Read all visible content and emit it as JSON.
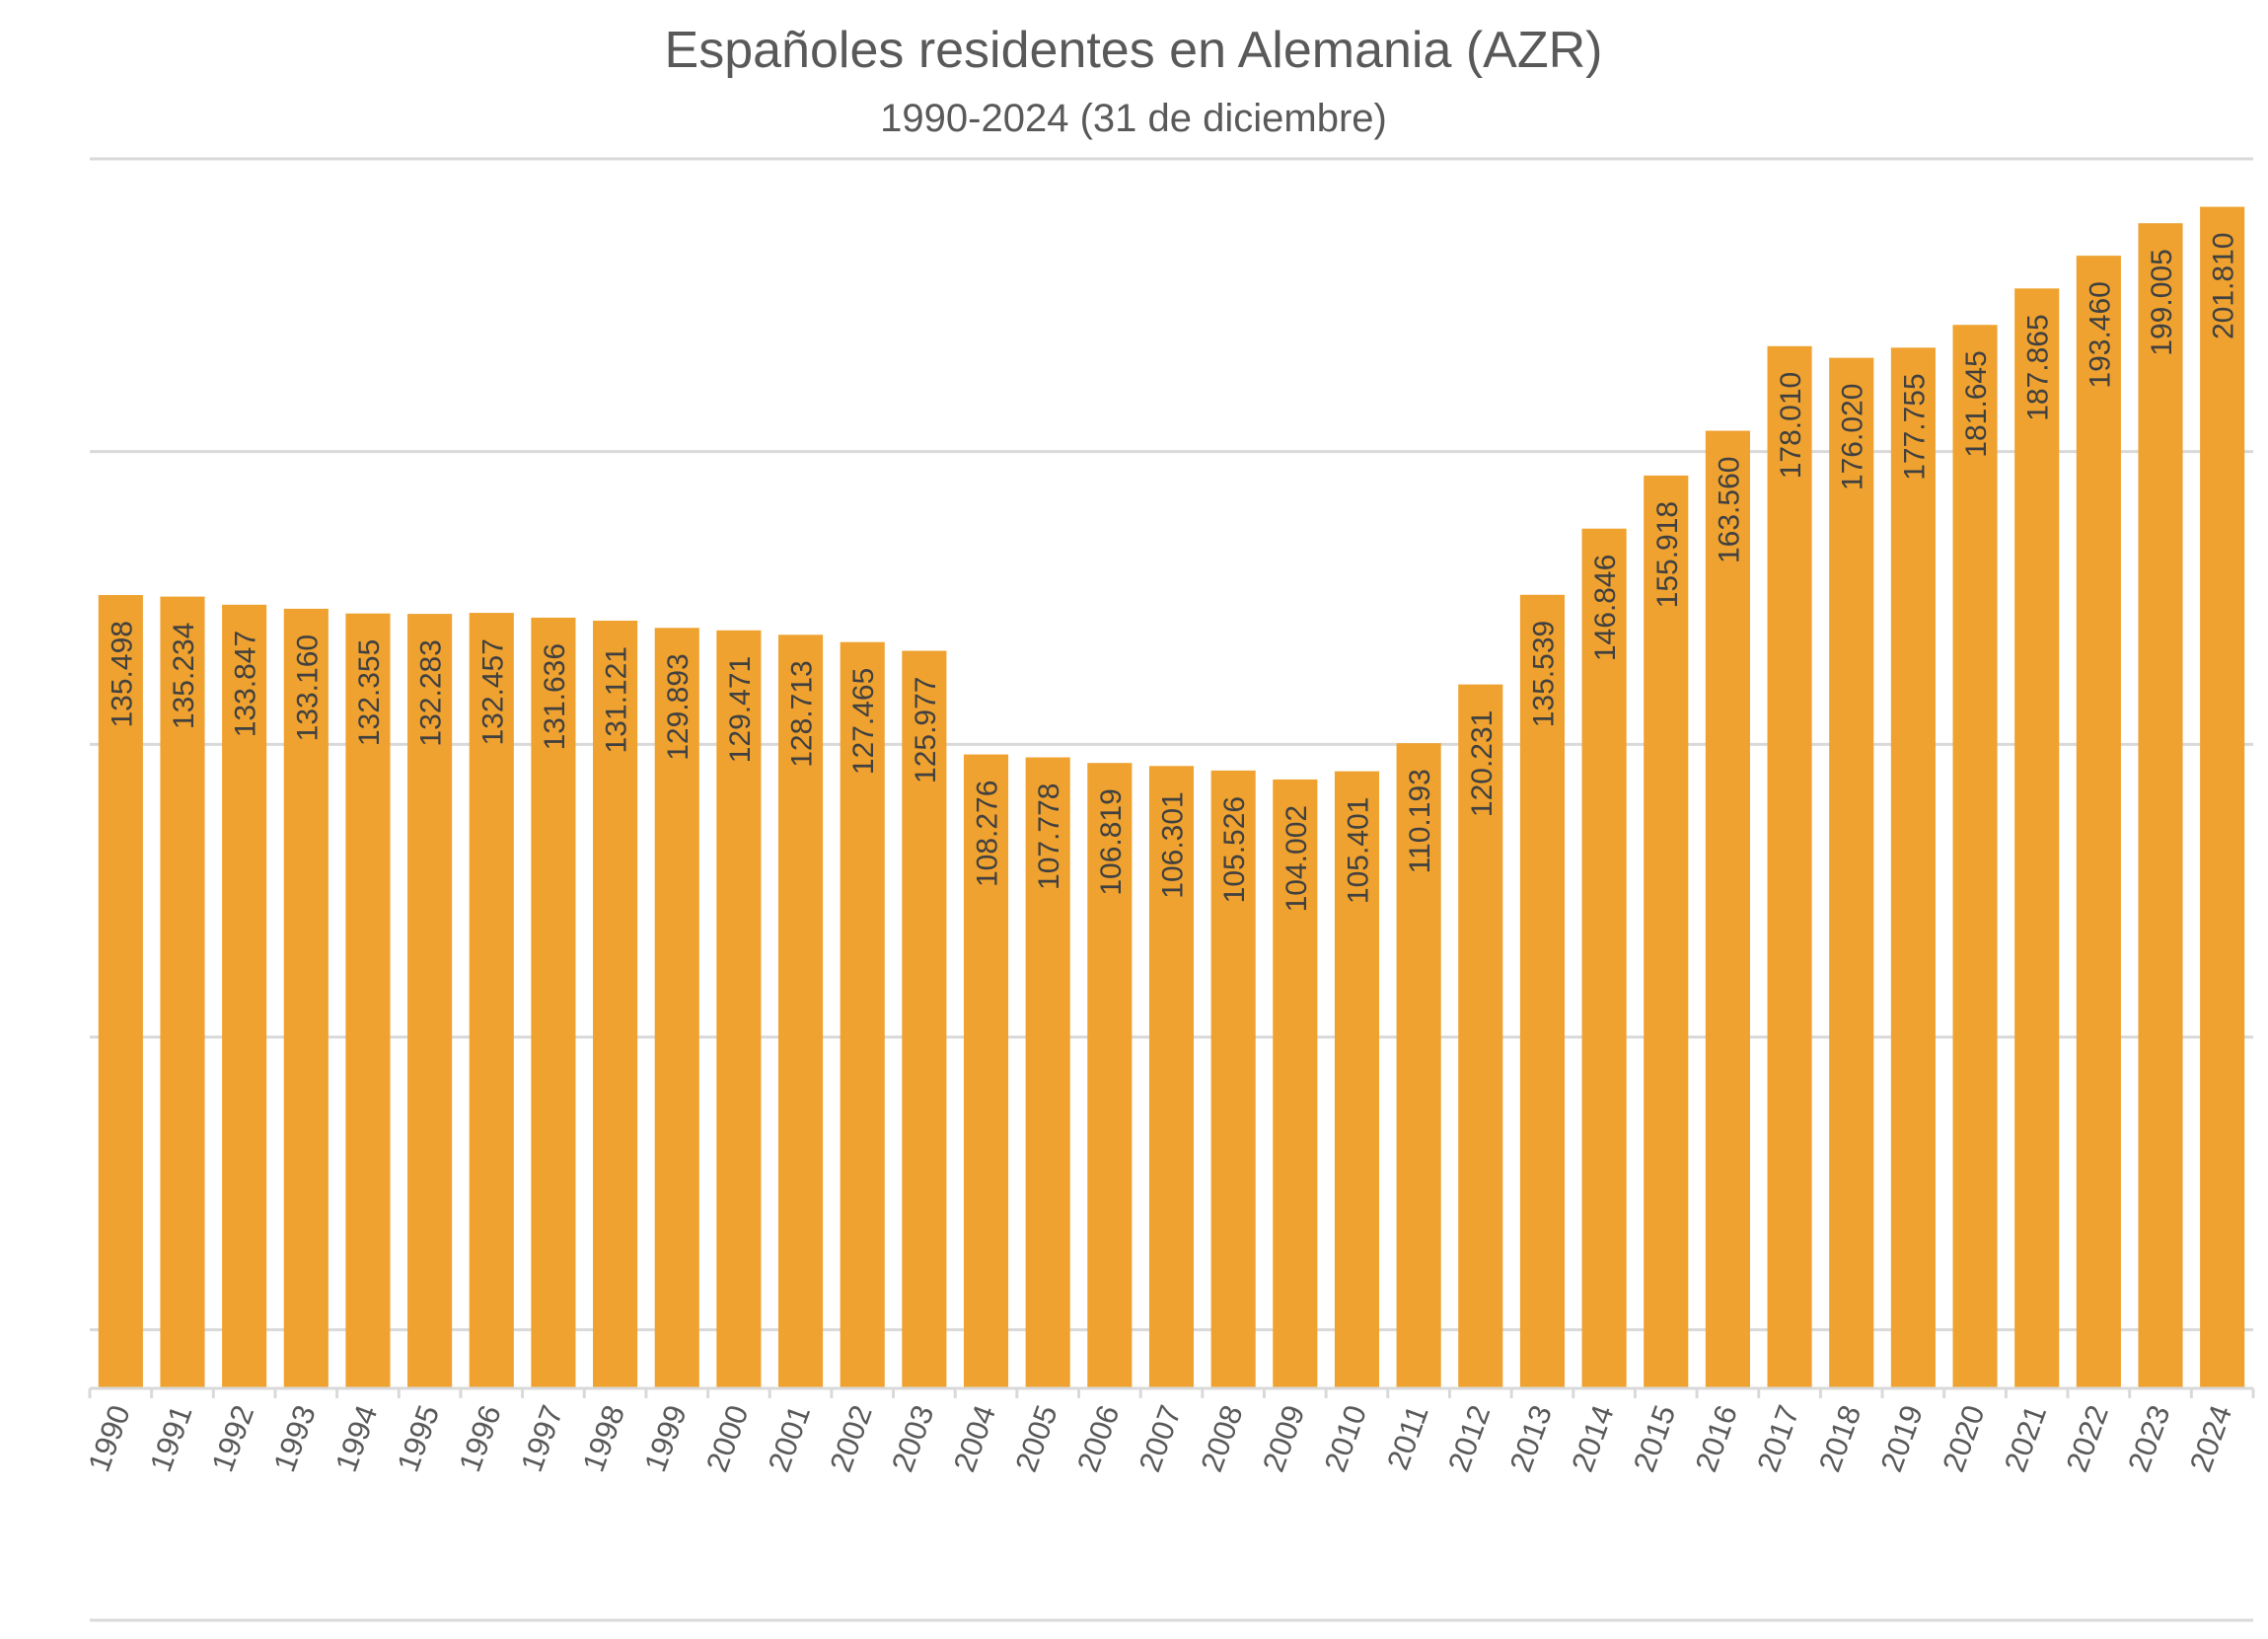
{
  "chart_data": {
    "type": "bar",
    "title": "Españoles residentes en Alemania (AZR)",
    "subtitle": "1990-2024 (31 de diciembre)",
    "xlabel": "",
    "ylabel": "",
    "categories": [
      "1990",
      "1991",
      "1992",
      "1993",
      "1994",
      "1995",
      "1996",
      "1997",
      "1998",
      "1999",
      "2000",
      "2001",
      "2002",
      "2003",
      "2004",
      "2005",
      "2006",
      "2007",
      "2008",
      "2009",
      "2010",
      "2011",
      "2012",
      "2013",
      "2014",
      "2015",
      "2016",
      "2017",
      "2018",
      "2019",
      "2020",
      "2021",
      "2022",
      "2023",
      "2024"
    ],
    "values": [
      135498,
      135234,
      133847,
      133160,
      132355,
      132283,
      132457,
      131636,
      131121,
      129893,
      129471,
      128713,
      127465,
      125977,
      108276,
      107778,
      106819,
      106301,
      105526,
      104002,
      105401,
      110193,
      120231,
      135539,
      146846,
      155918,
      163560,
      178010,
      176020,
      177755,
      181645,
      187865,
      193460,
      199005,
      201810
    ],
    "data_labels": [
      "135.498",
      "135.234",
      "133.847",
      "133.160",
      "132.355",
      "132.283",
      "132.457",
      "131.636",
      "131.121",
      "129.893",
      "129.471",
      "128.713",
      "127.465",
      "125.977",
      "108.276",
      "107.778",
      "106.819",
      "106.301",
      "105.526",
      "104.002",
      "105.401",
      "110.193",
      "120.231",
      "135.539",
      "146.846",
      "155.918",
      "163.560",
      "178.010",
      "176.020",
      "177.755",
      "181.645",
      "187.865",
      "193.460",
      "199.005",
      "201.810"
    ],
    "ylim": [
      0,
      210000
    ],
    "grid": true,
    "y_axis_labels_shown": false,
    "legend": "none",
    "bar_color": "#EFA22F",
    "gridline_color": "#D9D9D9"
  }
}
